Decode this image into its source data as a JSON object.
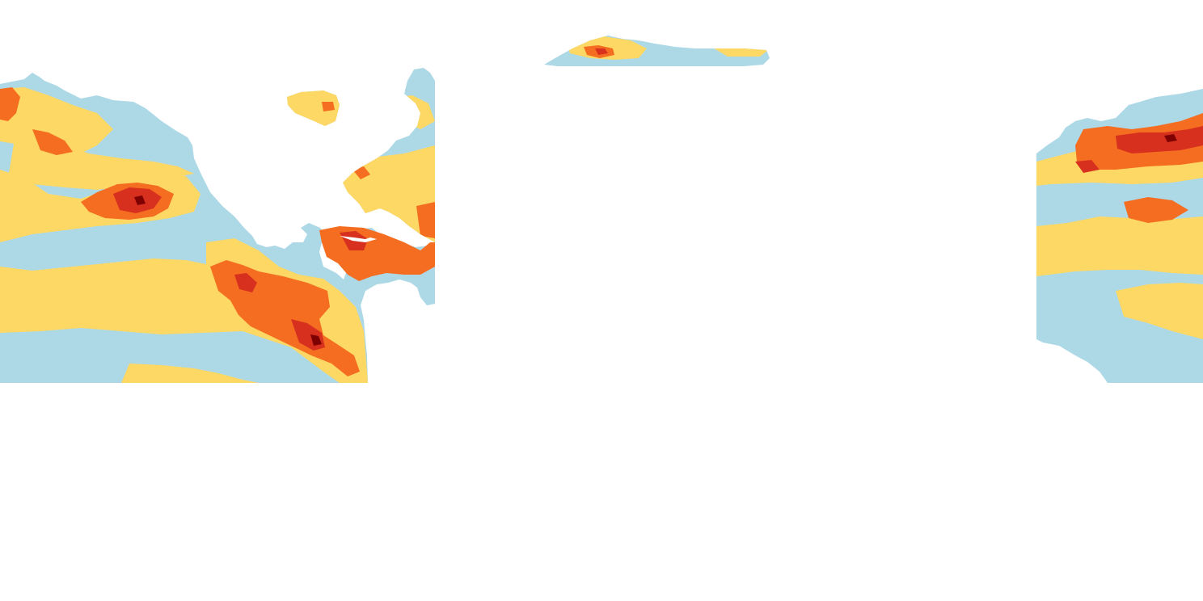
{
  "map": {
    "projection": "equirectangular",
    "background_color": "#ffffff",
    "land_color": "#ffffff",
    "legend": "none",
    "labels": "none",
    "classes": [
      {
        "level": 0,
        "color": "#add8e6"
      },
      {
        "level": 1,
        "color": "#fdd864"
      },
      {
        "level": 2,
        "color": "#f46d21"
      },
      {
        "level": 3,
        "color": "#d7301f"
      },
      {
        "level": 4,
        "color": "#7f0000"
      }
    ],
    "tiles": [
      {
        "name": "pacific-atlantic-tile",
        "lon_range": [
          -180,
          -50
        ],
        "lat_range": [
          -25,
          67
        ]
      },
      {
        "name": "arctic-strip-tile",
        "lon_range": [
          -17,
          50
        ],
        "lat_range": [
          62,
          74
        ]
      },
      {
        "name": "west-pacific-tile",
        "lon_range": [
          130,
          180
        ],
        "lat_range": [
          -25,
          52
        ]
      }
    ]
  }
}
